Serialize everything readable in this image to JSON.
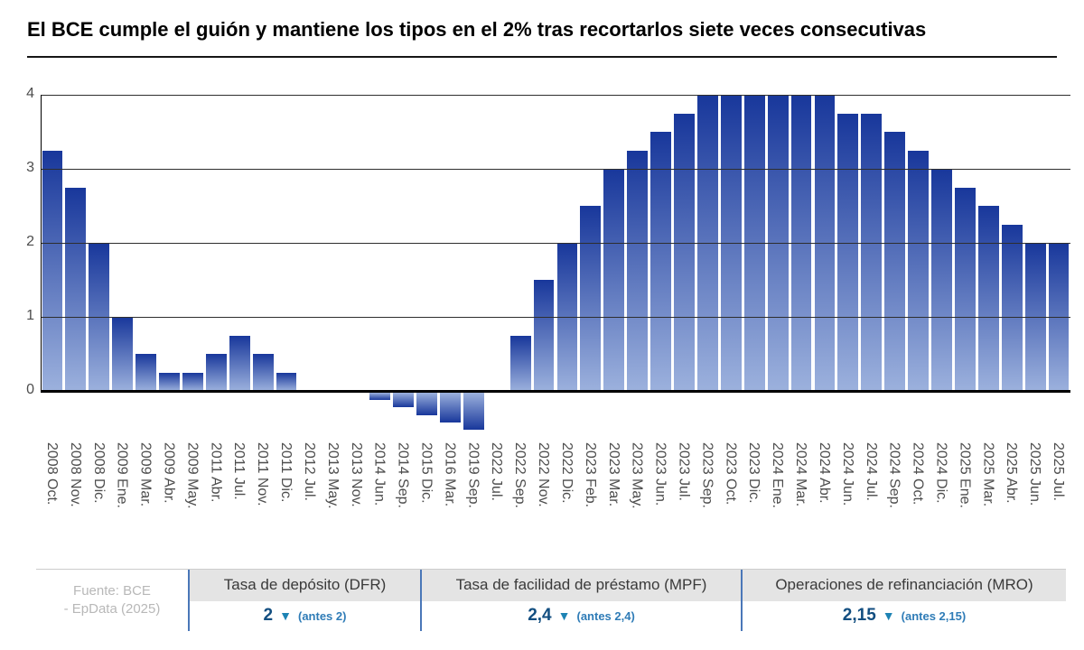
{
  "title": "El BCE cumple el guión y mantiene los tipos en el 2% tras recortarlos siete veces consecutivas",
  "chart_data": {
    "type": "bar",
    "title": "El BCE cumple el guión y mantiene los tipos en el 2% tras recortarlos siete veces consecutivas",
    "xlabel": "",
    "ylabel": "",
    "ylim": [
      -0.6,
      4.1
    ],
    "yticks": [
      0,
      1,
      2,
      3,
      4
    ],
    "grid": true,
    "legend": "none",
    "bar_gradient_top": "#18379b",
    "bar_gradient_bottom": "#9cb1dd",
    "categories": [
      "2008 Oct.",
      "2008 Nov.",
      "2008 Dic.",
      "2009 Ene.",
      "2009 Mar.",
      "2009 Abr.",
      "2009 May.",
      "2011 Abr.",
      "2011 Jul.",
      "2011 Nov.",
      "2011 Dic.",
      "2012 Jul.",
      "2013 May.",
      "2013 Nov.",
      "2014 Jun.",
      "2014 Sep.",
      "2015 Dic.",
      "2016 Mar.",
      "2019 Sep.",
      "2022 Jul.",
      "2022 Sep.",
      "2022 Nov.",
      "2022 Dic.",
      "2023 Feb.",
      "2023 Mar.",
      "2023 May.",
      "2023 Jun.",
      "2023 Jul.",
      "2023 Sep.",
      "2023 Oct.",
      "2023 Dic.",
      "2024 Ene.",
      "2024 Mar.",
      "2024 Abr.",
      "2024 Jun.",
      "2024 Jul.",
      "2024 Sep.",
      "2024 Oct.",
      "2024 Dic.",
      "2025 Ene.",
      "2025 Mar.",
      "2025 Abr.",
      "2025 Jun.",
      "2025 Jul."
    ],
    "values": [
      3.25,
      2.75,
      2.0,
      1.0,
      0.5,
      0.25,
      0.25,
      0.5,
      0.75,
      0.5,
      0.25,
      0.0,
      0.0,
      0.0,
      -0.1,
      -0.2,
      -0.3,
      -0.4,
      -0.5,
      0.0,
      0.75,
      1.5,
      2.0,
      2.5,
      3.0,
      3.25,
      3.5,
      3.75,
      4.0,
      4.0,
      4.0,
      4.0,
      4.0,
      4.0,
      3.75,
      3.75,
      3.5,
      3.25,
      3.0,
      2.75,
      2.5,
      2.25,
      2.0,
      2.0
    ]
  },
  "footer": {
    "source_line1": "Fuente: BCE",
    "source_line2": "- EpData (2025)",
    "panels": [
      {
        "label": "Tasa de depósito (DFR)",
        "value": "2",
        "change": "(antes 2)"
      },
      {
        "label": "Tasa de facilidad de préstamo (MPF)",
        "value": "2,4",
        "change": "(antes 2,4)"
      },
      {
        "label": "Operaciones de refinanciación (MRO)",
        "value": "2,15",
        "change": "(antes 2,15)"
      }
    ]
  },
  "icons": {
    "decrease_arrow": "▼"
  },
  "colors": {
    "bar_top": "#18379b",
    "bar_bottom": "#9cb1dd",
    "value_blue": "#124e80",
    "triangle_blue": "#1d83b4",
    "antes_blue": "#2f7cb7",
    "panel_border_blue": "#4a77b8",
    "panel_header_gray": "#e4e4e4",
    "source_gray": "#b8b8b8"
  }
}
